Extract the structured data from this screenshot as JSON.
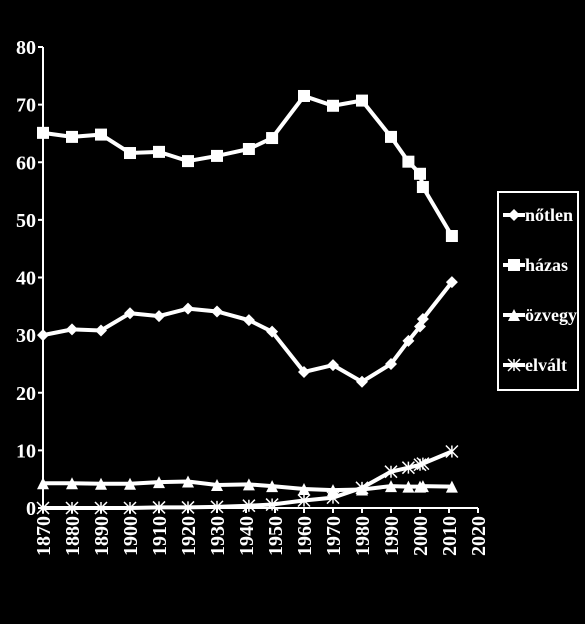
{
  "chart_data": {
    "type": "line",
    "x": [
      1870,
      1880,
      1890,
      1900,
      1910,
      1920,
      1930,
      1941,
      1949,
      1960,
      1970,
      1980,
      1990,
      1996,
      2000,
      2001,
      2011
    ],
    "series": [
      {
        "name": "nőtlen",
        "color": "#ffffff",
        "marker": "diamond",
        "values": [
          30,
          31,
          30.8,
          33.8,
          33.3,
          34.6,
          34.1,
          32.6,
          30.6,
          23.6,
          24.8,
          21.9,
          25,
          29,
          31.5,
          32.8,
          39.2
        ]
      },
      {
        "name": "házas",
        "color": "#ffffff",
        "marker": "square",
        "values": [
          65.1,
          64.4,
          64.8,
          61.6,
          61.8,
          60.2,
          61.1,
          62.3,
          64.2,
          71.5,
          69.8,
          70.7,
          64.4,
          60.1,
          58,
          55.7,
          47.2
        ]
      },
      {
        "name": "özvegy",
        "color": "#ffffff",
        "marker": "triangle",
        "values": [
          4.3,
          4.3,
          4.2,
          4.2,
          4.5,
          4.6,
          4.0,
          4.1,
          3.8,
          3.3,
          3.1,
          3.2,
          3.8,
          3.7,
          3.7,
          3.8,
          3.7
        ]
      },
      {
        "name": "elvált",
        "color": "#ffffff",
        "marker": "star",
        "values": [
          0,
          0,
          0,
          0,
          0.1,
          0.1,
          0.2,
          0.4,
          0.6,
          1.3,
          1.8,
          3.5,
          6.3,
          7.0,
          7.5,
          7.7,
          9.8
        ]
      }
    ],
    "xlim": [
      1870,
      2020
    ],
    "xticks": [
      1870,
      1880,
      1890,
      1900,
      1910,
      1920,
      1930,
      1940,
      1950,
      1960,
      1970,
      1980,
      1990,
      2000,
      2010,
      2020
    ],
    "ylim": [
      0,
      80
    ],
    "yticks": [
      0,
      10,
      20,
      30,
      40,
      50,
      60,
      70,
      80
    ],
    "legend": "right"
  }
}
